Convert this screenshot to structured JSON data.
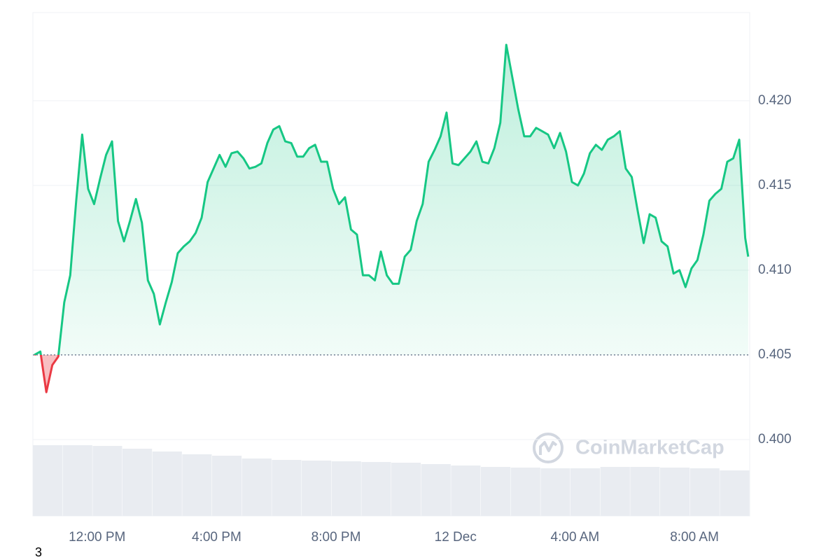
{
  "chart_data": {
    "type": "area-line",
    "x": [
      9.9,
      10.1,
      10.3,
      10.5,
      10.7,
      10.9,
      11.1,
      11.3,
      11.5,
      11.7,
      11.9,
      12.1,
      12.3,
      12.5,
      12.7,
      12.9,
      13.1,
      13.3,
      13.5,
      13.7,
      13.9,
      14.1,
      14.3,
      14.5,
      14.7,
      14.9,
      15.1,
      15.3,
      15.5,
      15.7,
      15.9,
      16.1,
      16.3,
      16.5,
      16.7,
      16.9,
      17.1,
      17.3,
      17.5,
      17.7,
      17.9,
      18.1,
      18.3,
      18.5,
      18.7,
      18.9,
      19.1,
      19.3,
      19.5,
      19.7,
      19.9,
      20.1,
      20.3,
      20.5,
      20.7,
      20.9,
      21.1,
      21.3,
      21.5,
      21.7,
      21.9,
      22.1,
      22.3,
      22.5,
      22.7,
      22.9,
      23.1,
      23.3,
      23.5,
      23.7,
      23.9,
      24.1,
      24.3,
      24.5,
      24.7,
      24.9,
      25.1,
      25.3,
      25.5,
      25.7,
      25.9,
      26.1,
      26.3,
      26.5,
      26.7,
      26.9,
      27.1,
      27.3,
      27.5,
      27.7,
      27.9,
      28.1,
      28.3,
      28.5,
      28.7,
      28.9,
      29.1,
      29.3,
      29.5,
      29.7,
      29.9,
      30.1,
      30.3,
      30.5,
      30.7,
      30.9,
      31.1,
      31.3,
      31.5,
      31.7,
      31.9,
      32.1,
      32.3,
      32.5,
      32.7,
      32.9,
      33.1,
      33.3,
      33.5,
      33.7,
      33.8
    ],
    "values": [
      0.405,
      0.4052,
      0.4028,
      0.4044,
      0.4049,
      0.4081,
      0.4097,
      0.4141,
      0.418,
      0.4148,
      0.4139,
      0.4154,
      0.4168,
      0.4176,
      0.4129,
      0.4117,
      0.4129,
      0.4142,
      0.4128,
      0.4094,
      0.4086,
      0.4068,
      0.4081,
      0.4093,
      0.411,
      0.4114,
      0.4117,
      0.4122,
      0.4131,
      0.4152,
      0.416,
      0.4168,
      0.4161,
      0.4169,
      0.417,
      0.4166,
      0.416,
      0.4161,
      0.4163,
      0.4175,
      0.4183,
      0.4185,
      0.4176,
      0.4175,
      0.4167,
      0.4167,
      0.4172,
      0.4174,
      0.4164,
      0.4164,
      0.4148,
      0.4139,
      0.4143,
      0.4124,
      0.4121,
      0.4097,
      0.4097,
      0.4094,
      0.4111,
      0.4097,
      0.4092,
      0.4092,
      0.4108,
      0.4112,
      0.4129,
      0.4139,
      0.4164,
      0.4171,
      0.4179,
      0.4193,
      0.4163,
      0.4162,
      0.4166,
      0.417,
      0.4176,
      0.4164,
      0.4163,
      0.4172,
      0.4187,
      0.4233,
      0.4214,
      0.4195,
      0.4179,
      0.4179,
      0.4184,
      0.4182,
      0.418,
      0.4172,
      0.4181,
      0.417,
      0.4152,
      0.415,
      0.4157,
      0.4169,
      0.4174,
      0.4171,
      0.4177,
      0.4179,
      0.4182,
      0.416,
      0.4155,
      0.4135,
      0.4116,
      0.4133,
      0.4131,
      0.4117,
      0.4114,
      0.4098,
      0.41,
      0.409,
      0.4101,
      0.4106,
      0.4121,
      0.4141,
      0.4145,
      0.4148,
      0.4164,
      0.4166,
      0.4177,
      0.4119,
      0.4108
    ],
    "baseline": 0.405,
    "up_color": "#16c784",
    "down_color": "#ea3943",
    "xlim": [
      9.85,
      33.85
    ],
    "xticks": [
      {
        "value": 12,
        "label": "12:00 PM"
      },
      {
        "value": 16,
        "label": "4:00 PM"
      },
      {
        "value": 20,
        "label": "8:00 PM"
      },
      {
        "value": 24,
        "label": "12 Dec"
      },
      {
        "value": 28,
        "label": "4:00 AM"
      },
      {
        "value": 32,
        "label": "8:00 AM"
      }
    ],
    "ylim": [
      0.3955,
      0.4252
    ],
    "yticks": [
      {
        "value": 0.4,
        "label": "0.400"
      },
      {
        "value": 0.405,
        "label": "0.405"
      },
      {
        "value": 0.41,
        "label": "0.410"
      },
      {
        "value": 0.415,
        "label": "0.415"
      },
      {
        "value": 0.42,
        "label": "0.420"
      }
    ],
    "grid": true,
    "volume": {
      "color": "#e9ecf1",
      "lim": [
        0,
        120
      ],
      "values": [
        101,
        101,
        100,
        96,
        92,
        88,
        86,
        82,
        80,
        79,
        78,
        77,
        76,
        74,
        72,
        70,
        69,
        68,
        68,
        70,
        70,
        69,
        68,
        65
      ]
    },
    "watermark": "CoinMarketCap",
    "corner_label": "3"
  }
}
